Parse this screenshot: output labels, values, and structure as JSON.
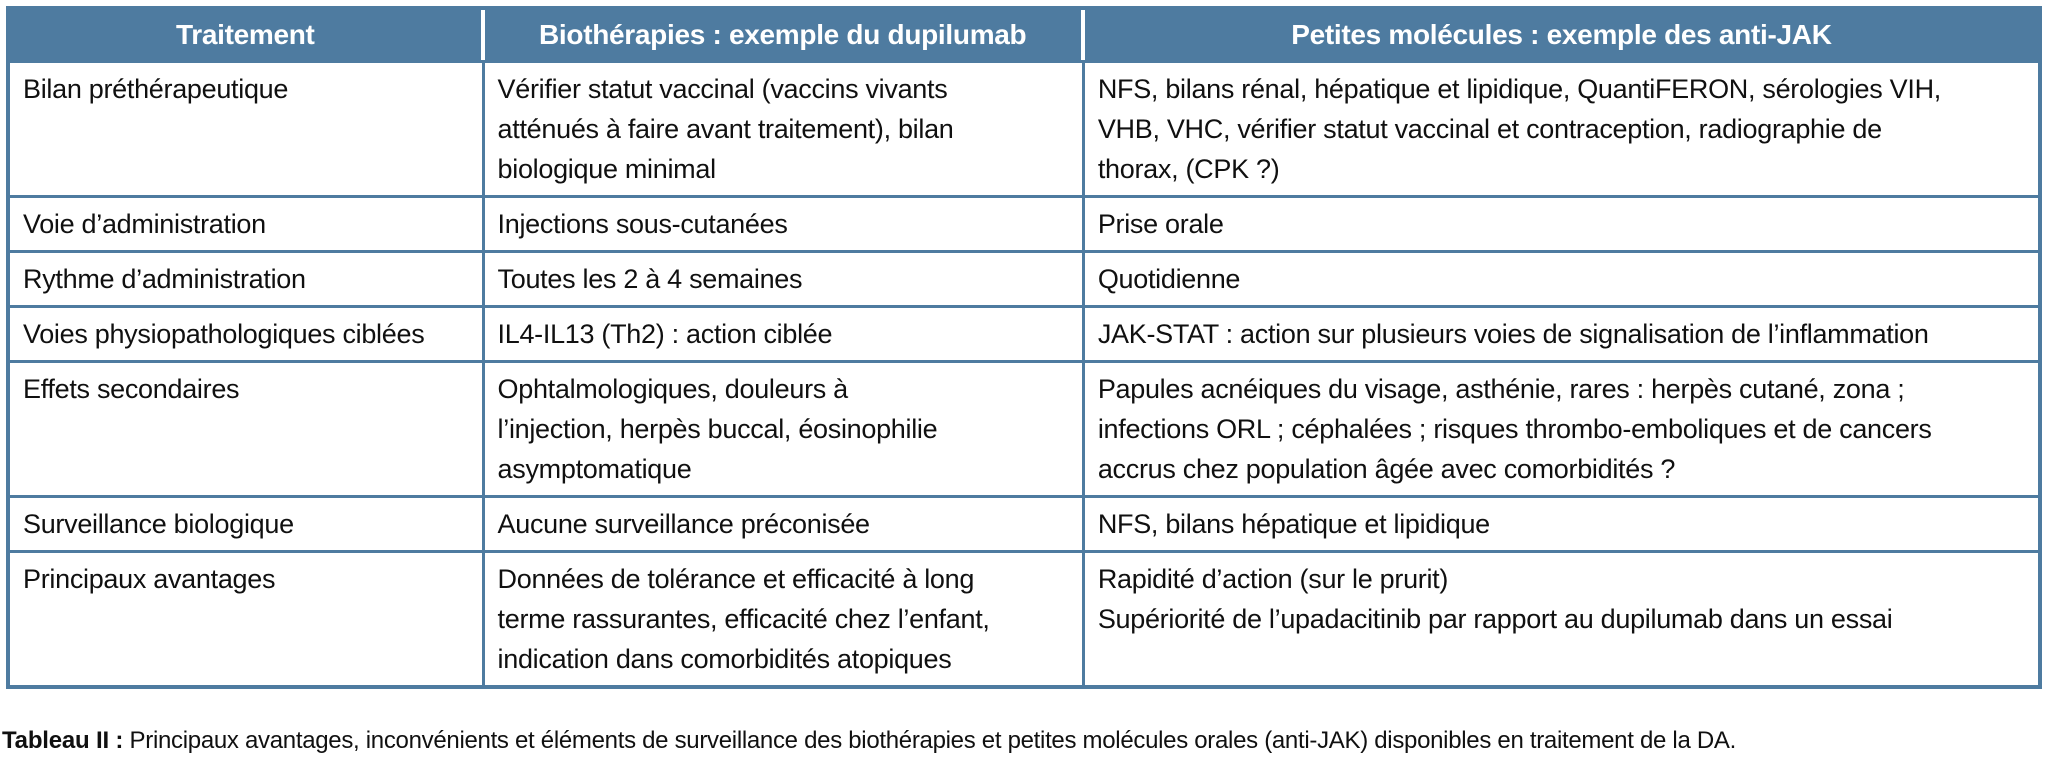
{
  "colors": {
    "header_bg": "#4e7ba0",
    "border": "#4e7ba0",
    "header_text": "#ffffff",
    "body_text": "#101010"
  },
  "table": {
    "headers": [
      {
        "label": "Traitement"
      },
      {
        "label": "Biothérapies : exemple du dupilumab"
      },
      {
        "label": "Petites molécules : exemple des anti-JAK"
      }
    ],
    "rows": [
      {
        "label": "Bilan préthérapeutique",
        "dupilumab": "Vérifier statut vaccinal (vaccins vivants\natténués à faire avant traitement), bilan\nbiologique minimal",
        "antijak": "NFS, bilans rénal, hépatique et lipidique, QuantiFERON, sérologies VIH,\nVHB, VHC, vérifier statut vaccinal et contraception, radiographie de\nthorax, (CPK ?)"
      },
      {
        "label": "Voie d’administration",
        "dupilumab": "Injections sous-cutanées",
        "antijak": "Prise orale"
      },
      {
        "label": "Rythme d’administration",
        "dupilumab": "Toutes les 2 à 4 semaines",
        "antijak": "Quotidienne"
      },
      {
        "label": "Voies physiopathologiques ciblées",
        "dupilumab": "IL4-IL13 (Th2) : action ciblée",
        "antijak": "JAK-STAT : action sur plusieurs voies de signalisation de l’inflammation"
      },
      {
        "label": "Effets secondaires",
        "dupilumab": "Ophtalmologiques, douleurs à\nl’injection, herpès buccal, éosinophilie\nasymptomatique",
        "antijak": "Papules acnéiques du visage, asthénie, rares : herpès cutané, zona ;\ninfections ORL ; céphalées ; risques thrombo-emboliques et de cancers\naccrus chez population âgée avec comorbidités ?"
      },
      {
        "label": "Surveillance biologique",
        "dupilumab": "Aucune surveillance préconisée",
        "antijak": "NFS, bilans hépatique et lipidique"
      },
      {
        "label": "Principaux avantages",
        "dupilumab": "Données de tolérance et efficacité à long\nterme rassurantes, efficacité chez l’enfant,\nindication dans comorbidités atopiques",
        "antijak": "Rapidité d’action (sur le prurit)\nSupériorité de l’upadacitinib par rapport au dupilumab dans un essai"
      }
    ]
  },
  "caption": {
    "label": "Tableau II :",
    "text": " Principaux avantages, inconvénients et éléments de surveillance des biothérapies et petites molécules orales (anti-JAK) disponibles en traitement de la DA."
  }
}
